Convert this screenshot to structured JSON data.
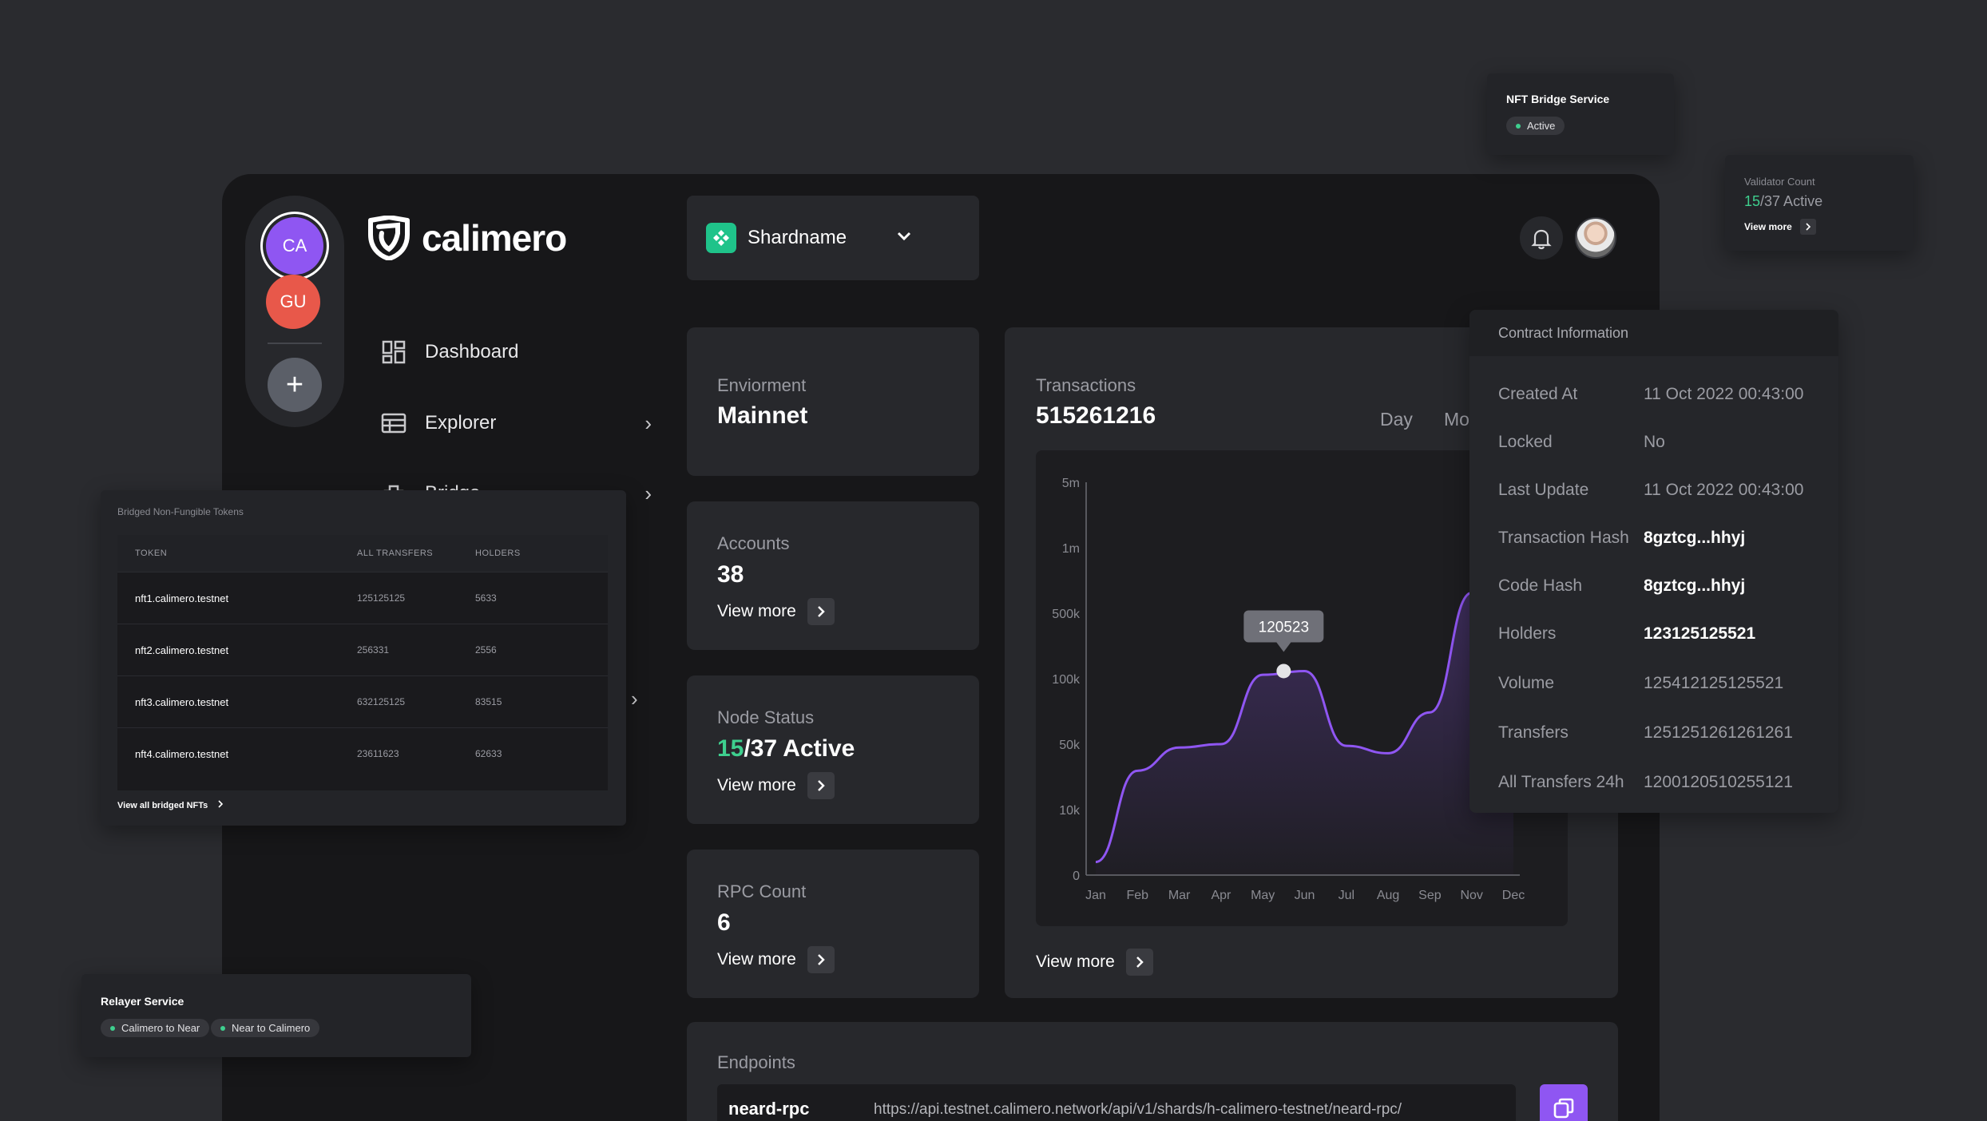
{
  "brand": {
    "name": "calimero"
  },
  "workspaces": [
    {
      "initials": "CA"
    },
    {
      "initials": "GU"
    }
  ],
  "add_workspace": "+",
  "nav": [
    {
      "label": "Dashboard",
      "icon": "dashboard-icon"
    },
    {
      "label": "Explorer",
      "icon": "explorer-icon"
    },
    {
      "label": "Bridge",
      "icon": "bridge-icon"
    }
  ],
  "shard": {
    "name": "Shardname"
  },
  "stats": {
    "environment": {
      "label": "Enviorment",
      "value": "Mainnet"
    },
    "accounts": {
      "label": "Accounts",
      "value": "38",
      "action": "View more"
    },
    "node_status": {
      "label": "Node Status",
      "active": "15",
      "total": "/37 Active",
      "action": "View more"
    },
    "rpc_count": {
      "label": "RPC Count",
      "value": "6",
      "action": "View more"
    }
  },
  "transactions": {
    "label": "Transactions",
    "value": "515261216",
    "ranges": [
      "Day",
      "Mo"
    ],
    "action": "View more",
    "tooltip": "120523"
  },
  "chart_data": {
    "type": "area",
    "title": "",
    "xlabel": "",
    "ylabel": "",
    "y_ticks": [
      "0",
      "10k",
      "50k",
      "100k",
      "500k",
      "1m",
      "5m"
    ],
    "categories": [
      "Jan",
      "Feb",
      "Mar",
      "Apr",
      "May",
      "Jun",
      "Jul",
      "Aug",
      "Sep",
      "Nov",
      "Dec"
    ],
    "series": [
      {
        "values": [
          2000,
          26000,
          46000,
          50000,
          110000,
          120523,
          48000,
          40000,
          70000,
          620000,
          1800000
        ]
      }
    ],
    "highlight": {
      "category": "May",
      "value": 120523
    }
  },
  "endpoints": {
    "label": "Endpoints",
    "items": [
      {
        "name": "neard-rpc",
        "url": "https://api.testnet.calimero.network/api/v1/shards/h-calimero-testnet/neard-rpc/"
      }
    ]
  },
  "contract": {
    "title": "Contract Information",
    "rows": [
      {
        "key": "Created At",
        "value": "11 Oct 2022 00:43:00",
        "bold": false
      },
      {
        "key": "Locked",
        "value": "No",
        "bold": false
      },
      {
        "key": "Last Update",
        "value": "11 Oct 2022 00:43:00",
        "bold": false
      },
      {
        "key": "Transaction Hash",
        "value": "8gztcg...hhyj",
        "bold": true
      },
      {
        "key": "Code Hash",
        "value": "8gztcg...hhyj",
        "bold": true
      },
      {
        "key": "Holders",
        "value": "123125125521",
        "bold": true
      },
      {
        "key": "Volume",
        "value": "125412125125521",
        "bold": false
      },
      {
        "key": "Transfers",
        "value": "1251251261261261",
        "bold": false
      },
      {
        "key": "All Transfers 24h",
        "value": "1200120510255121",
        "bold": false
      }
    ]
  },
  "nft_bridge_service": {
    "title": "NFT Bridge Service",
    "status": "Active"
  },
  "validator_count": {
    "label": "Validator Count",
    "active": "15",
    "total": "/37 Active",
    "action": "View more"
  },
  "nft_table": {
    "title": "Bridged Non-Fungible Tokens",
    "columns": [
      "TOKEN",
      "ALL TRANSFERS",
      "HOLDERS"
    ],
    "rows": [
      [
        "nft1.calimero.testnet",
        "125125125",
        "5633"
      ],
      [
        "nft2.calimero.testnet",
        "256331",
        "2556"
      ],
      [
        "nft3.calimero.testnet",
        "632125125",
        "83515"
      ],
      [
        "nft4.calimero.testnet",
        "23611623",
        "62633"
      ]
    ],
    "action": "View all bridged NFTs"
  },
  "relayer_service": {
    "title": "Relayer Service",
    "directions": [
      "Calimero to Near",
      "Near to Calimero"
    ]
  },
  "colors": {
    "accent_purple": "#8f56f2",
    "success_green": "#3ecf8e",
    "danger_red": "#e8584a",
    "brand_teal": "#1fc38a"
  }
}
